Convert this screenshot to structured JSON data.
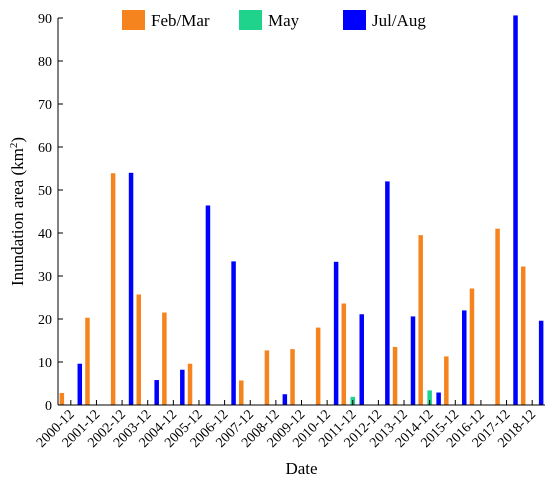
{
  "chart_data": {
    "type": "bar",
    "xlabel": "Date",
    "ylabel": "Inundation area (km",
    "ylabel_sup": "2",
    "ylabel_tail": ")",
    "ylim": [
      0,
      90
    ],
    "yticks": [
      0,
      10,
      20,
      30,
      40,
      50,
      60,
      70,
      80,
      90
    ],
    "categories": [
      "2000-12",
      "2001-12",
      "2002-12",
      "2003-12",
      "2004-12",
      "2005-12",
      "2006-12",
      "2007-12",
      "2008-12",
      "2009-12",
      "2010-12",
      "2011-12",
      "2012-12",
      "2013-12",
      "2014-12",
      "2015-12",
      "2016-12",
      "2017-12",
      "2018-12"
    ],
    "legend_position": "top",
    "series": [
      {
        "name": "Feb/Mar",
        "color": "#F5841F",
        "points": [
          {
            "x": "2000-12",
            "y": 2.8,
            "offset": -0.35
          },
          {
            "x": "2001-12",
            "y": 20.3,
            "offset": -0.35
          },
          {
            "x": "2002-12",
            "y": 53.9,
            "offset": -0.35
          },
          {
            "x": "2003-12",
            "y": 25.7,
            "offset": -0.35
          },
          {
            "x": "2004-12",
            "y": 21.5,
            "offset": -0.35
          },
          {
            "x": "2005-12",
            "y": 9.6,
            "offset": -0.35
          },
          {
            "x": "2007-12",
            "y": 5.7,
            "offset": -0.35
          },
          {
            "x": "2008-12",
            "y": 12.7,
            "offset": -0.35
          },
          {
            "x": "2009-12",
            "y": 13.0,
            "offset": -0.35
          },
          {
            "x": "2010-12",
            "y": 18.0,
            "offset": -0.35
          },
          {
            "x": "2011-12",
            "y": 23.6,
            "offset": -0.35
          },
          {
            "x": "2013-12",
            "y": 13.5,
            "offset": -0.35
          },
          {
            "x": "2014-12",
            "y": 39.5,
            "offset": -0.35
          },
          {
            "x": "2015-12",
            "y": 11.3,
            "offset": -0.35
          },
          {
            "x": "2016-12",
            "y": 27.1,
            "offset": -0.35
          },
          {
            "x": "2017-12",
            "y": 41.0,
            "offset": -0.35
          },
          {
            "x": "2018-12",
            "y": 32.2,
            "offset": -0.35
          }
        ]
      },
      {
        "name": "May",
        "color": "#1FD38D",
        "points": [
          {
            "x": "2011-12",
            "y": 1.9,
            "offset": 0.0
          },
          {
            "x": "2014-12",
            "y": 3.4,
            "offset": 0.0
          }
        ]
      },
      {
        "name": "Jul/Aug",
        "color": "#0000FF",
        "points": [
          {
            "x": "2000-12",
            "y": 9.6,
            "offset": 0.35
          },
          {
            "x": "2002-12",
            "y": 54.0,
            "offset": 0.35
          },
          {
            "x": "2003-12",
            "y": 5.8,
            "offset": 0.35
          },
          {
            "x": "2004-12",
            "y": 8.2,
            "offset": 0.35
          },
          {
            "x": "2005-12",
            "y": 46.4,
            "offset": 0.35
          },
          {
            "x": "2006-12",
            "y": 33.4,
            "offset": 0.35
          },
          {
            "x": "2008-12",
            "y": 2.5,
            "offset": 0.35
          },
          {
            "x": "2010-12",
            "y": 33.3,
            "offset": 0.35
          },
          {
            "x": "2011-12",
            "y": 21.1,
            "offset": 0.35
          },
          {
            "x": "2012-12",
            "y": 52.0,
            "offset": 0.35
          },
          {
            "x": "2013-12",
            "y": 20.6,
            "offset": 0.35
          },
          {
            "x": "2014-12",
            "y": 2.9,
            "offset": 0.35
          },
          {
            "x": "2015-12",
            "y": 22.0,
            "offset": 0.35
          },
          {
            "x": "2017-12",
            "y": 90.6,
            "offset": 0.35
          },
          {
            "x": "2018-12",
            "y": 19.6,
            "offset": 0.35
          }
        ]
      }
    ]
  }
}
